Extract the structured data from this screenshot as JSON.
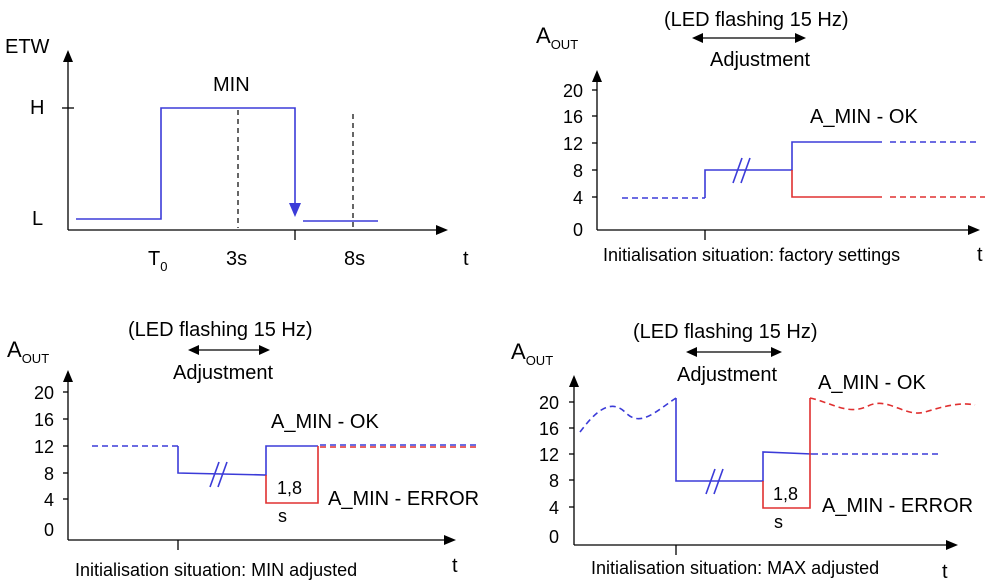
{
  "panel1": {
    "y_axis_label": "ETW",
    "x_axis_label": "t",
    "level_high": "H",
    "level_low": "L",
    "pulse_label": "MIN",
    "t0_main": "T",
    "t0_sub": "0",
    "t_3s": "3s",
    "t_8s": "8s"
  },
  "panel2": {
    "y_axis_main": "A",
    "y_axis_sub": "OUT",
    "x_axis_label": "t",
    "led_note": "(LED flashing 15 Hz)",
    "adjustment": "Adjustment",
    "ticks": [
      "20",
      "16",
      "12",
      "8",
      "4",
      "0"
    ],
    "ok_label": "A_MIN - OK",
    "caption": "Initialisation situation: factory settings"
  },
  "panel3": {
    "y_axis_main": "A",
    "y_axis_sub": "OUT",
    "x_axis_label": "t",
    "led_note": "(LED flashing 15 Hz)",
    "adjustment": "Adjustment",
    "ticks": [
      "20",
      "16",
      "12",
      "8",
      "4",
      "0"
    ],
    "ok_label": "A_MIN - OK",
    "error_label": "A_MIN - ERROR",
    "duration": "1,8",
    "duration_unit": "s",
    "caption": "Initialisation situation: MIN adjusted"
  },
  "panel4": {
    "y_axis_main": "A",
    "y_axis_sub": "OUT",
    "x_axis_label": "t",
    "led_note": "(LED flashing 15 Hz)",
    "adjustment": "Adjustment",
    "ticks": [
      "20",
      "16",
      "12",
      "8",
      "4",
      "0"
    ],
    "ok_label": "A_MIN - OK",
    "error_label": "A_MIN - ERROR",
    "duration": "1,8",
    "duration_unit": "s",
    "caption": "Initialisation situation: MAX adjusted"
  },
  "colors": {
    "signal": "#3b3bd8",
    "error": "#e03030",
    "axis": "#000000"
  }
}
